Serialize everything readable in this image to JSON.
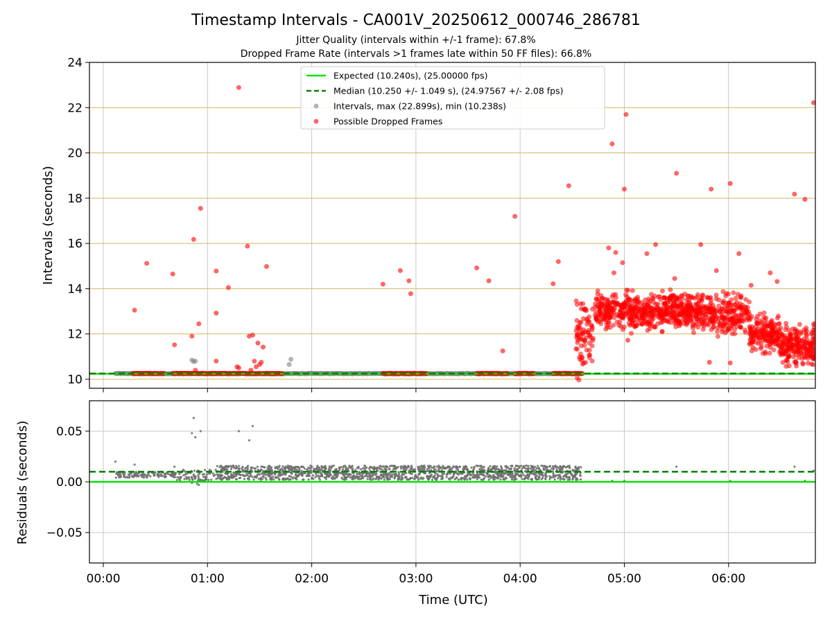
{
  "chart_data": {
    "title": "Timestamp Intervals - CA001V_20250612_000746_286781",
    "subtitles": [
      "Jitter Quality (intervals within +/-1 frame): 67.8%",
      "Dropped Frame Rate (intervals >1 frames late within 50 FF files): 66.8%"
    ],
    "x_axis": {
      "label": "Time (UTC)",
      "unit": "minutes",
      "range": [
        -8,
        410
      ],
      "ticks": [
        0,
        60,
        120,
        180,
        240,
        300,
        360
      ],
      "tick_labels": [
        "00:00",
        "01:00",
        "02:00",
        "03:00",
        "04:00",
        "05:00",
        "06:00"
      ],
      "grid": true
    },
    "panels": [
      {
        "type": "scatter",
        "name": "intervals",
        "ylabel": "Intervals (seconds)",
        "ylim": [
          9.6,
          24
        ],
        "yticks": [
          10,
          12,
          14,
          16,
          18,
          20,
          22,
          24
        ],
        "grid": {
          "x": true,
          "y": true,
          "y_color": "#d2b460"
        },
        "expected_line": {
          "y": 10.24,
          "color": "#00e400",
          "style": "solid"
        },
        "median_line": {
          "y": 10.25,
          "color": "#008000",
          "style": "dashed"
        },
        "legend": {
          "placement": "upper-center",
          "entries": [
            {
              "label": "Expected (10.240s), (25.00000 fps)",
              "marker": "line",
              "color": "#00e400"
            },
            {
              "label": "Median (10.250 +/- 1.049 s), (24.97567 +/- 2.08 fps)",
              "marker": "dashed-line",
              "color": "#008000"
            },
            {
              "label": "Intervals, max (22.899s), min (10.238s)",
              "marker": "dot",
              "color": "#808080"
            },
            {
              "label": "Possible Dropped Frames",
              "marker": "dot",
              "color": "#ff0000"
            }
          ]
        },
        "series": [
          {
            "name": "Intervals",
            "color": "#808080",
            "points": [
              [
                51,
                10.85
              ],
              [
                52,
                10.78
              ],
              [
                53,
                10.8
              ],
              [
                107,
                10.65
              ],
              [
                108,
                10.88
              ]
            ],
            "band": {
              "x_range": [
                7,
                270
              ],
              "y": 10.25,
              "color": "#808080"
            }
          },
          {
            "name": "Possible Dropped Frames",
            "color": "#ff0000",
            "points": [
              [
                18,
                13.05
              ],
              [
                25,
                15.12
              ],
              [
                41,
                11.52
              ],
              [
                40,
                14.65
              ],
              [
                51,
                11.9
              ],
              [
                52,
                16.18
              ],
              [
                53,
                10.4
              ],
              [
                55,
                12.45
              ],
              [
                56,
                17.55
              ],
              [
                65,
                14.78
              ],
              [
                65,
                12.92
              ],
              [
                65,
                10.8
              ],
              [
                72,
                14.05
              ],
              [
                77,
                10.55
              ],
              [
                78,
                22.89
              ],
              [
                78,
                10.5
              ],
              [
                83,
                15.88
              ],
              [
                84,
                11.9
              ],
              [
                85,
                10.4
              ],
              [
                86,
                11.95
              ],
              [
                87,
                10.8
              ],
              [
                88,
                10.55
              ],
              [
                89,
                11.6
              ],
              [
                90,
                10.65
              ],
              [
                91,
                10.75
              ],
              [
                92,
                11.42
              ],
              [
                94,
                14.98
              ],
              [
                161,
                14.2
              ],
              [
                171,
                14.8
              ],
              [
                176,
                14.35
              ],
              [
                177,
                13.78
              ],
              [
                215,
                14.92
              ],
              [
                222,
                14.35
              ],
              [
                230,
                11.25
              ],
              [
                237,
                17.2
              ],
              [
                259,
                14.22
              ],
              [
                262,
                15.2
              ],
              [
                268,
                18.55
              ],
              [
                282,
                11.8
              ],
              [
                291,
                15.8
              ],
              [
                293,
                20.4
              ],
              [
                294,
                14.7
              ],
              [
                295,
                15.6
              ],
              [
                299,
                15.15
              ],
              [
                300,
                18.4
              ],
              [
                301,
                21.7
              ],
              [
                302,
                11.72
              ],
              [
                313,
                15.55
              ],
              [
                318,
                15.95
              ],
              [
                329,
                14.45
              ],
              [
                330,
                19.1
              ],
              [
                344,
                15.95
              ],
              [
                350,
                18.4
              ],
              [
                353,
                14.8
              ],
              [
                361,
                18.65
              ],
              [
                366,
                15.55
              ],
              [
                373,
                14.15
              ],
              [
                374,
                11.4
              ],
              [
                384,
                14.7
              ],
              [
                388,
                14.32
              ],
              [
                398,
                18.18
              ],
              [
                404,
                17.95
              ],
              [
                409,
                22.22
              ],
              [
                349,
                10.75
              ],
              [
                361,
                10.72
              ]
            ],
            "bands": [
              {
                "x_range": [
                  17,
                  35
                ],
                "y": 10.25
              },
              {
                "x_range": [
                  40,
                  103
                ],
                "y": 10.25
              },
              {
                "x_range": [
                  161,
                  186
                ],
                "y": 10.25
              },
              {
                "x_range": [
                  215,
                  233
                ],
                "y": 10.25
              },
              {
                "x_range": [
                  237,
                  248
                ],
                "y": 10.25
              },
              {
                "x_range": [
                  259,
                  276
                ],
                "y": 10.25
              }
            ],
            "clouds": [
              {
                "x_range": [
                  272,
                  282
                ],
                "y_center": 12.0,
                "y_spread": 1.4,
                "count": 80
              },
              {
                "x_range": [
                  283,
                  345
                ],
                "y_center": 13.0,
                "y_spread": 0.7,
                "count": 600
              },
              {
                "x_range": [
                  345,
                  372
                ],
                "y_center": 12.9,
                "y_spread": 0.75,
                "count": 220
              },
              {
                "x_range": [
                  372,
                  390
                ],
                "y_center": 12.0,
                "y_spread": 0.7,
                "count": 180
              },
              {
                "x_range": [
                  390,
                  410
                ],
                "y_center": 11.5,
                "y_spread": 0.75,
                "count": 220
              }
            ]
          }
        ]
      },
      {
        "type": "scatter",
        "name": "residuals",
        "ylabel": "Residuals (seconds)",
        "ylim": [
          -0.08,
          0.08
        ],
        "yticks": [
          -0.05,
          0.0,
          0.05
        ],
        "ytick_labels": [
          "−0.05",
          "0.00",
          "0.05"
        ],
        "grid": {
          "x": true,
          "y": true,
          "y_color": "#c8c8c8"
        },
        "expected_line": {
          "y": 0.0,
          "color": "#00e400",
          "style": "solid"
        },
        "median_line": {
          "y": 0.01,
          "color": "#008000",
          "style": "dashed"
        },
        "series": [
          {
            "name": "Residuals",
            "color": "#707070",
            "points": [
              [
                51,
                0.048
              ],
              [
                52,
                0.063
              ],
              [
                53,
                0.044
              ],
              [
                56,
                0.05
              ],
              [
                78,
                0.05
              ],
              [
                84,
                0.041
              ],
              [
                86,
                0.055
              ],
              [
                7,
                0.02
              ],
              [
                18,
                0.017
              ],
              [
                41,
                0.015
              ],
              [
                54,
                -0.002
              ],
              [
                51,
                -0.001
              ],
              [
                55,
                -0.003
              ],
              [
                300,
                0.001
              ],
              [
                293,
                0.001
              ],
              [
                330,
                0.015
              ],
              [
                361,
                0.001
              ],
              [
                398,
                0.015
              ],
              [
                404,
                0.001
              ],
              [
                409,
                0.011
              ]
            ],
            "bands": [
              {
                "x_range": [
                  7,
                  42
                ],
                "y_low": 0.004,
                "y_high": 0.01,
                "count": 120
              },
              {
                "x_range": [
                  42,
                  65
                ],
                "y_low": 0.001,
                "y_high": 0.012,
                "count": 80
              },
              {
                "x_range": [
                  65,
                  275
                ],
                "y_low": 0.002,
                "y_high": 0.016,
                "count": 1500
              }
            ]
          }
        ]
      }
    ]
  }
}
